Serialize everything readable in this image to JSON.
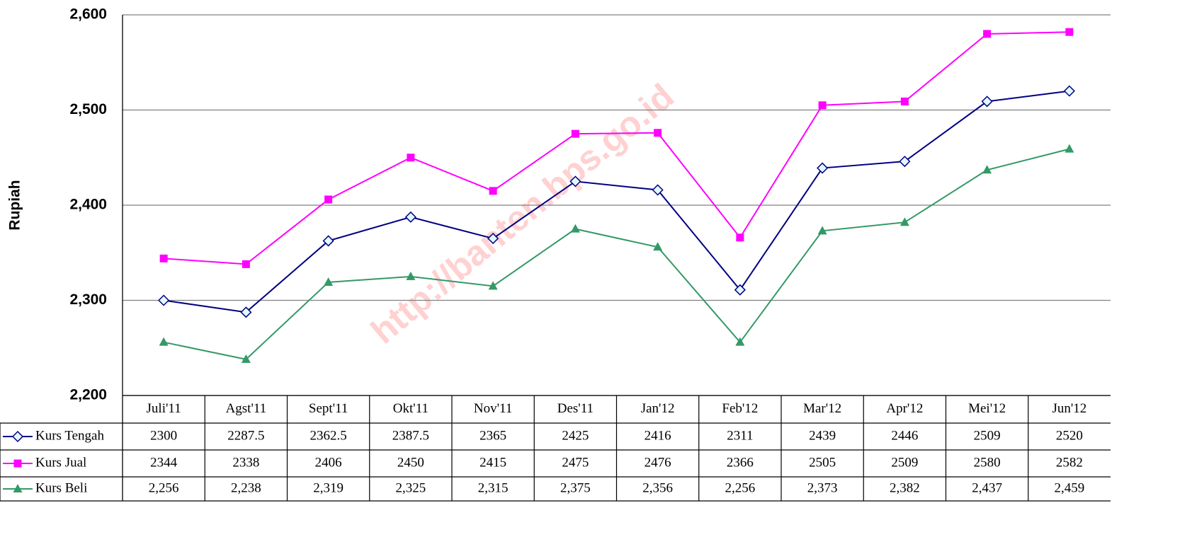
{
  "watermark": "http://banten.bps.go.id",
  "chart_data": {
    "type": "line",
    "y_label": "Rupiah",
    "categories": [
      "Juli'11",
      "Agst'11",
      "Sept'11",
      "Okt'11",
      "Nov'11",
      "Des'11",
      "Jan'12",
      "Feb'12",
      "Mar'12",
      "Apr'12",
      "Mei'12",
      "Jun'12"
    ],
    "series": [
      {
        "name": "Kurs Tengah",
        "color": "#000080",
        "marker": "diamond",
        "values": [
          2300,
          2287.5,
          2362.5,
          2387.5,
          2365,
          2425,
          2416,
          2311,
          2439,
          2446,
          2509,
          2520
        ]
      },
      {
        "name": "Kurs Jual",
        "color": "#ff00ff",
        "marker": "square",
        "values": [
          2344,
          2338,
          2406,
          2450,
          2415,
          2475,
          2476,
          2366,
          2505,
          2509,
          2580,
          2582
        ]
      },
      {
        "name": "Kurs Beli",
        "color": "#339966",
        "marker": "triangle",
        "values": [
          2256,
          2238,
          2319,
          2325,
          2315,
          2375,
          2356,
          2256,
          2373,
          2382,
          2437,
          2459
        ],
        "value_labels": [
          "2,256",
          "2,238",
          "2,319",
          "2,325",
          "2,315",
          "2,375",
          "2,356",
          "2,256",
          "2,373",
          "2,382",
          "2,437",
          "2,459"
        ]
      }
    ],
    "ylim": [
      2200,
      2600
    ],
    "yticks": [
      {
        "value": 2200,
        "label": "2,200"
      },
      {
        "value": 2300,
        "label": "2,300"
      },
      {
        "value": 2400,
        "label": "2,400"
      },
      {
        "value": 2500,
        "label": "2,500"
      },
      {
        "value": 2600,
        "label": "2,600"
      }
    ],
    "grid": true,
    "legend": "table"
  }
}
